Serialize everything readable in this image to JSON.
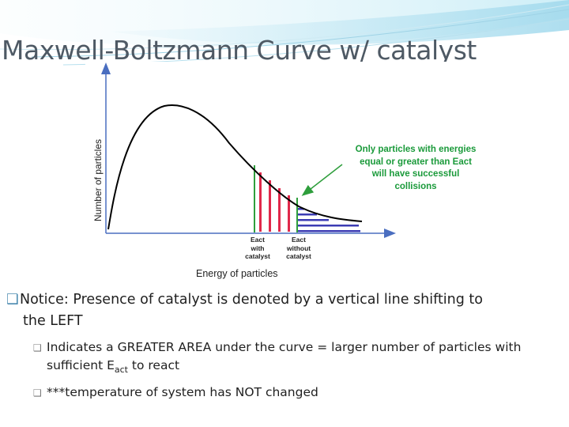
{
  "slide": {
    "title": "Maxwell-Boltzmann Curve w/ catalyst"
  },
  "graph": {
    "y_axis_label": "Number of particles",
    "x_axis_label": "Energy of particles",
    "annotation": [
      "Only particles with energies",
      "equal or greater than Eact",
      "will have successful",
      "collisions"
    ],
    "eact_with_catalyst": [
      "Eact",
      "with",
      "catalyst"
    ],
    "eact_without_catalyst": [
      "Eact",
      "without",
      "catalyst"
    ],
    "colors": {
      "curve": "#000000",
      "catalyst_line": "#2e9e3c",
      "catalyst_bars": "#e0284a",
      "uncatalyzed_bars": "#3c3cb4",
      "annotation": "#1a9a3a",
      "axis_arrow": "#4a6ec0"
    }
  },
  "bullets": {
    "main_prefix": "Notice: Presence of catalyst is denoted by a vertical line shifting to",
    "main_suffix": "the LEFT",
    "sub1_line1": "Indicates a GREATER AREA under the curve = larger number of particles with",
    "sub1_line2_before": "sufficient E",
    "sub1_line2_sub": "act",
    "sub1_line2_after": " to react",
    "sub2": "***temperature of system has NOT changed"
  }
}
